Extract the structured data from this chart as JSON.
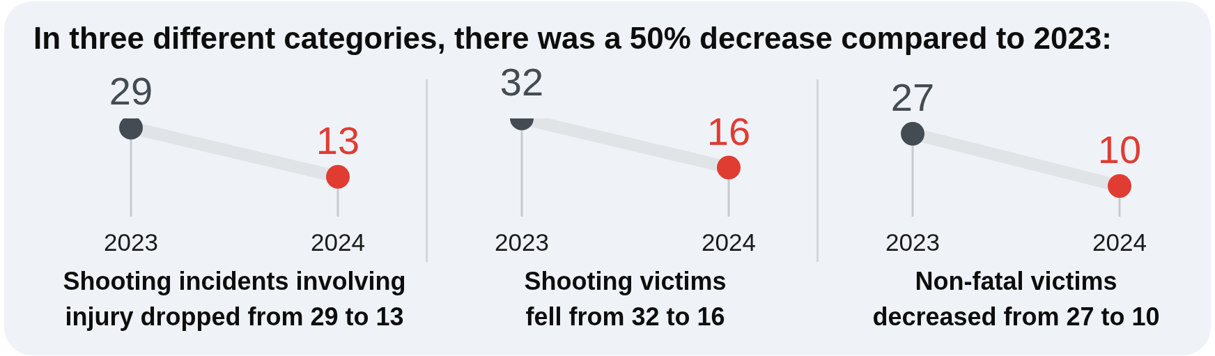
{
  "chart_data": [
    {
      "type": "line",
      "title": "In three different categories, there was a 50% decrease compared to 2023:",
      "xlabel": "Shooting incidents involving\ninjury dropped from 29 to 13",
      "categories": [
        "2023",
        "2024"
      ],
      "values": [
        29,
        13
      ],
      "color": "#e1e4e7",
      "colors": [
        "#434c53",
        "#e03c31"
      ],
      "marker": "circle",
      "data_labels": true,
      "tick_labels": "x"
    },
    {
      "type": "line",
      "xlabel": "Shooting victims\nfell from 32 to 16",
      "categories": [
        "2023",
        "2024"
      ],
      "values": [
        32,
        16
      ],
      "color": "#e1e4e7",
      "colors": [
        "#434c53",
        "#e03c31"
      ],
      "marker": "circle",
      "data_labels": true,
      "tick_labels": "x"
    },
    {
      "type": "line",
      "xlabel": "Non-fatal victims\ndecreased from 27 to 10",
      "categories": [
        "2023",
        "2024"
      ],
      "values": [
        27,
        10
      ],
      "color": "#e1e4e7",
      "colors": [
        "#434c53",
        "#e03c31"
      ],
      "marker": "circle",
      "data_labels": true,
      "tick_labels": "x"
    }
  ]
}
